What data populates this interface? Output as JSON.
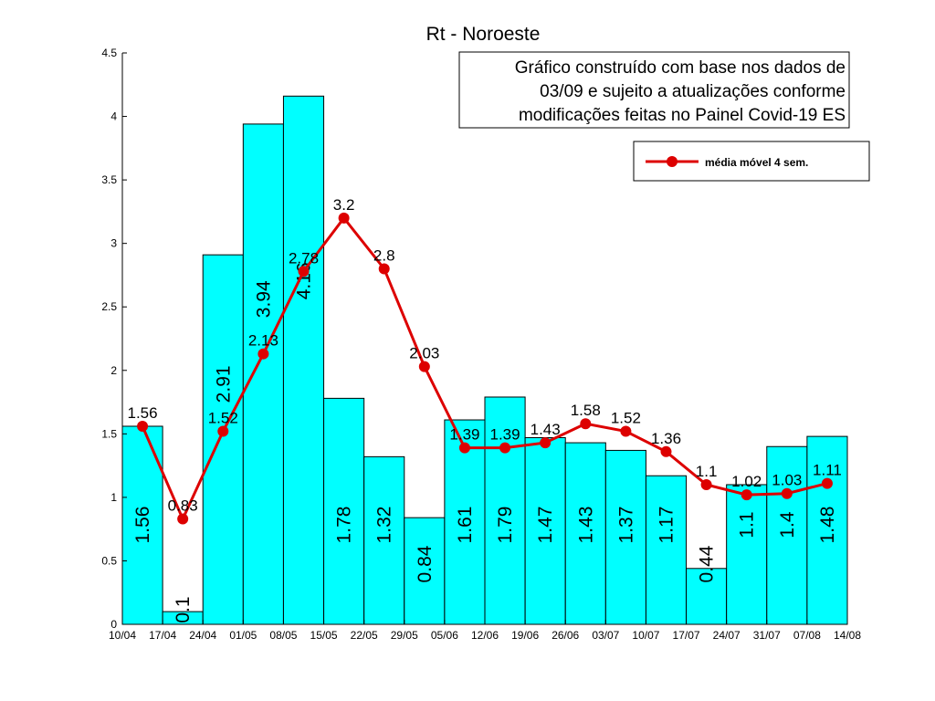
{
  "chart_data": {
    "type": "bar",
    "title": "Rt - Noroeste",
    "xlabel": "",
    "ylabel": "",
    "ylim": [
      0,
      4.5
    ],
    "y_ticks": [
      "0",
      "0.5",
      "1",
      "1.5",
      "2",
      "2.5",
      "3",
      "3.5",
      "4",
      "4.5"
    ],
    "x_tick_labels": [
      "10/04",
      "17/04",
      "24/04",
      "01/05",
      "08/05",
      "15/05",
      "22/05",
      "29/05",
      "05/06",
      "12/06",
      "19/06",
      "26/06",
      "03/07",
      "10/07",
      "17/07",
      "24/07",
      "31/07",
      "07/08",
      "14/08"
    ],
    "bars": {
      "values": [
        1.56,
        0.1,
        2.91,
        3.94,
        4.16,
        1.78,
        1.32,
        0.84,
        1.61,
        1.79,
        1.47,
        1.43,
        1.37,
        1.17,
        0.44,
        1.1,
        1.4,
        1.48
      ],
      "labels": [
        "1.56",
        "0.1",
        "2.91",
        "3.94",
        "4.16",
        "1.78",
        "1.32",
        "0.84",
        "1.61",
        "1.79",
        "1.47",
        "1.43",
        "1.37",
        "1.17",
        "0.44",
        "1.1",
        "1.4",
        "1.48"
      ],
      "color": "#00ffff"
    },
    "series": [
      {
        "name": "média móvel 4 sem.",
        "values": [
          1.56,
          0.83,
          1.52,
          2.13,
          2.78,
          3.2,
          2.8,
          2.03,
          1.39,
          1.39,
          1.43,
          1.58,
          1.52,
          1.36,
          1.1,
          1.02,
          1.03,
          1.11
        ],
        "labels": [
          "1.56",
          "0.83",
          "1.52",
          "2.13",
          "2.78",
          "3.2",
          "2.8",
          "2.03",
          "1.39",
          "1.39",
          "1.43",
          "1.58",
          "1.52",
          "1.36",
          "1.1",
          "1.02",
          "1.03",
          "1.11"
        ],
        "color": "#dd0000"
      }
    ],
    "annotation_lines": [
      "Gráfico construído com base nos dados de",
      "03/09 e sujeito a atualizações conforme",
      "modificações feitas no Painel Covid-19 ES"
    ],
    "legend_position": "top-right",
    "grid": false
  }
}
